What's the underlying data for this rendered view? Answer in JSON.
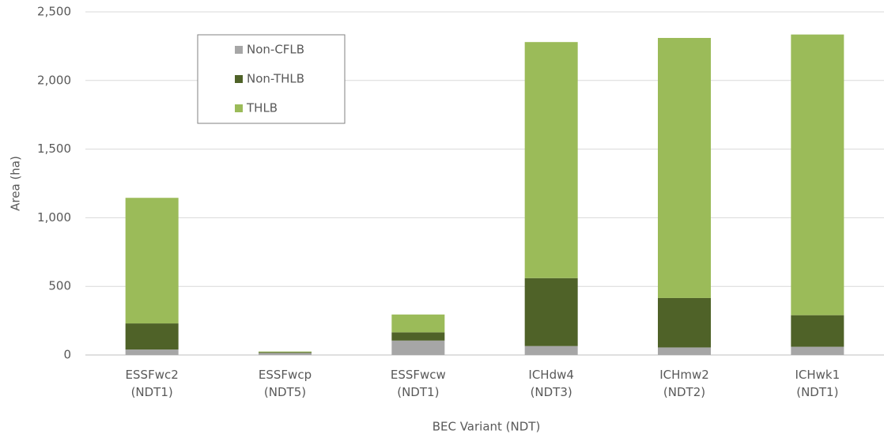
{
  "chart_data": {
    "type": "stacked_bar",
    "x_label": "BEC Variant (NDT)",
    "y_label": "Area (ha)",
    "categories": [
      "ESSFwc2\n(NDT1)",
      "ESSFwcp\n(NDT5)",
      "ESSFwcw\n(NDT1)",
      "ICHdw4\n(NDT3)",
      "ICHmw2\n(NDT2)",
      "ICHwk1\n(NDT1)"
    ],
    "series": [
      {
        "name": "Non-CFLB",
        "color": "#a6a6a6",
        "values": [
          40,
          15,
          105,
          65,
          55,
          60
        ]
      },
      {
        "name": "Non-THLB",
        "color": "#4f6228",
        "values": [
          190,
          5,
          60,
          495,
          360,
          230
        ]
      },
      {
        "name": "THLB",
        "color": "#9bbb59",
        "values": [
          915,
          5,
          130,
          1720,
          1895,
          2045
        ]
      }
    ],
    "ylim": [
      0,
      2500
    ],
    "yticks": [
      0,
      500,
      {
        "value": 1000,
        "label": "1,000"
      },
      {
        "value": 1500,
        "label": "1,500"
      },
      {
        "value": 2000,
        "label": "2,000"
      },
      {
        "value": 2500,
        "label": "2,500"
      }
    ],
    "grid": true,
    "legend": "upper-left"
  }
}
